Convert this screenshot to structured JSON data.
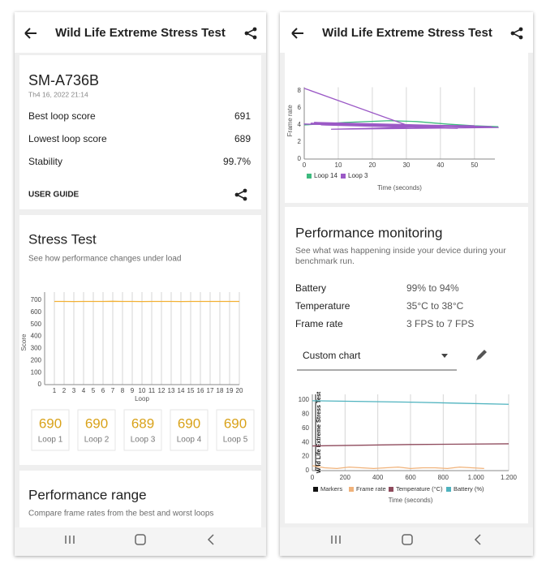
{
  "left": {
    "header": {
      "title": "Wild Life Extreme Stress Test"
    },
    "device": {
      "name": "SM-A736B",
      "date": "Th4 16, 2022 21:14",
      "rows": [
        {
          "label": "Best loop score",
          "value": "691"
        },
        {
          "label": "Lowest loop score",
          "value": "689"
        },
        {
          "label": "Stability",
          "value": "99.7%"
        }
      ],
      "user_guide": "USER GUIDE"
    },
    "stress_test": {
      "title": "Stress Test",
      "subtitle": "See how performance changes under load",
      "chart": {
        "type": "line",
        "ylabel": "Score",
        "xlabel": "Loop",
        "x": [
          1,
          2,
          3,
          4,
          5,
          6,
          7,
          8,
          9,
          10,
          11,
          12,
          13,
          14,
          15,
          16,
          17,
          18,
          19,
          20
        ],
        "series": [
          {
            "color": "#f2b134",
            "values": [
              690,
              690,
              689,
              690,
              690,
              690,
              691,
              690,
              690,
              689,
              690,
              690,
              690,
              689,
              690,
              690,
              690,
              690,
              690,
              690
            ]
          }
        ],
        "xlim": [
          0,
          20
        ],
        "ylim": [
          0,
          700
        ],
        "xticks": [
          1,
          2,
          3,
          4,
          5,
          6,
          7,
          8,
          9,
          10,
          11,
          12,
          13,
          14,
          15,
          16,
          17,
          18,
          19,
          20
        ],
        "yticks": [
          0,
          100,
          200,
          300,
          400,
          500,
          600,
          700
        ]
      },
      "loops": [
        {
          "score": "690",
          "label": "Loop 1"
        },
        {
          "score": "690",
          "label": "Loop 2"
        },
        {
          "score": "689",
          "label": "Loop 3"
        },
        {
          "score": "690",
          "label": "Loop 4"
        },
        {
          "score": "690",
          "label": "Loop 5"
        }
      ]
    },
    "performance_range": {
      "title": "Performance range",
      "subtitle": "Compare frame rates from the best and worst loops"
    }
  },
  "right": {
    "header": {
      "title": "Wild Life Extreme Stress Test"
    },
    "frame_chart": {
      "type": "line",
      "ylabel": "Frame rate",
      "xlabel": "Time (seconds)",
      "series": [
        {
          "name": "Loop 14",
          "color": "#3dba7e",
          "x": [
            0,
            12,
            25,
            33,
            42,
            50,
            57
          ],
          "values": [
            4.0,
            4.3,
            4.5,
            4.4,
            4.1,
            3.9,
            3.8
          ]
        },
        {
          "name": "Loop 3",
          "color": "#9b59c6",
          "x": [
            0,
            30,
            2,
            45,
            5,
            55,
            3,
            57,
            8,
            50,
            0,
            56
          ],
          "values": [
            8.3,
            4.0,
            4.2,
            3.6,
            4.0,
            3.8,
            4.3,
            3.7,
            3.5,
            3.9,
            4.1,
            3.7
          ]
        }
      ],
      "xlim": [
        0,
        56
      ],
      "ylim": [
        0,
        9
      ],
      "xticks": [
        0,
        10,
        20,
        30,
        40,
        50
      ],
      "yticks": [
        0,
        2,
        4,
        6,
        8
      ]
    },
    "monitoring": {
      "title": "Performance monitoring",
      "description": "See what was happening inside your device during your benchmark run.",
      "rows": [
        {
          "label": "Battery",
          "value": "99% to 94%"
        },
        {
          "label": "Temperature",
          "value": "35°C to 38°C"
        },
        {
          "label": "Frame rate",
          "value": "3 FPS to 7 FPS"
        }
      ],
      "dropdown": "Custom chart",
      "chart": {
        "type": "line",
        "xlabel": "Time (seconds)",
        "markers": {
          "name": "Markers",
          "color": "#111111",
          "items": [
            {
              "x": 20,
              "label": "Wild Life Extreme Stress Test"
            }
          ]
        },
        "series": [
          {
            "name": "Frame rate",
            "color": "#f0b27a",
            "x": [
              0,
              75,
              150,
              225,
              300,
              375,
              450,
              525,
              600,
              675,
              750,
              825,
              900,
              975,
              1050
            ],
            "values": [
              7,
              4,
              3,
              5,
              4,
              3,
              4,
              5,
              3,
              4,
              4,
              3,
              5,
              4,
              3
            ]
          },
          {
            "name": "Temperature (°C)",
            "color": "#8e4a5c",
            "x": [
              0,
              300,
              600,
              900,
              1200
            ],
            "values": [
              35,
              36,
              37,
              37.5,
              38
            ]
          },
          {
            "name": "Battery (%)",
            "color": "#4fb3bf",
            "x": [
              0,
              300,
              600,
              900,
              1200
            ],
            "values": [
              99,
              98,
              97,
              95.5,
              94
            ]
          }
        ],
        "xlim": [
          0,
          1200
        ],
        "ylim": [
          0,
          100
        ],
        "xticks": [
          0,
          200,
          400,
          600,
          800,
          {
            "value": 1000,
            "label": "1.000"
          },
          {
            "value": 1200,
            "label": "1.200"
          }
        ],
        "yticks": [
          0,
          20,
          40,
          60,
          80,
          100
        ]
      }
    }
  }
}
